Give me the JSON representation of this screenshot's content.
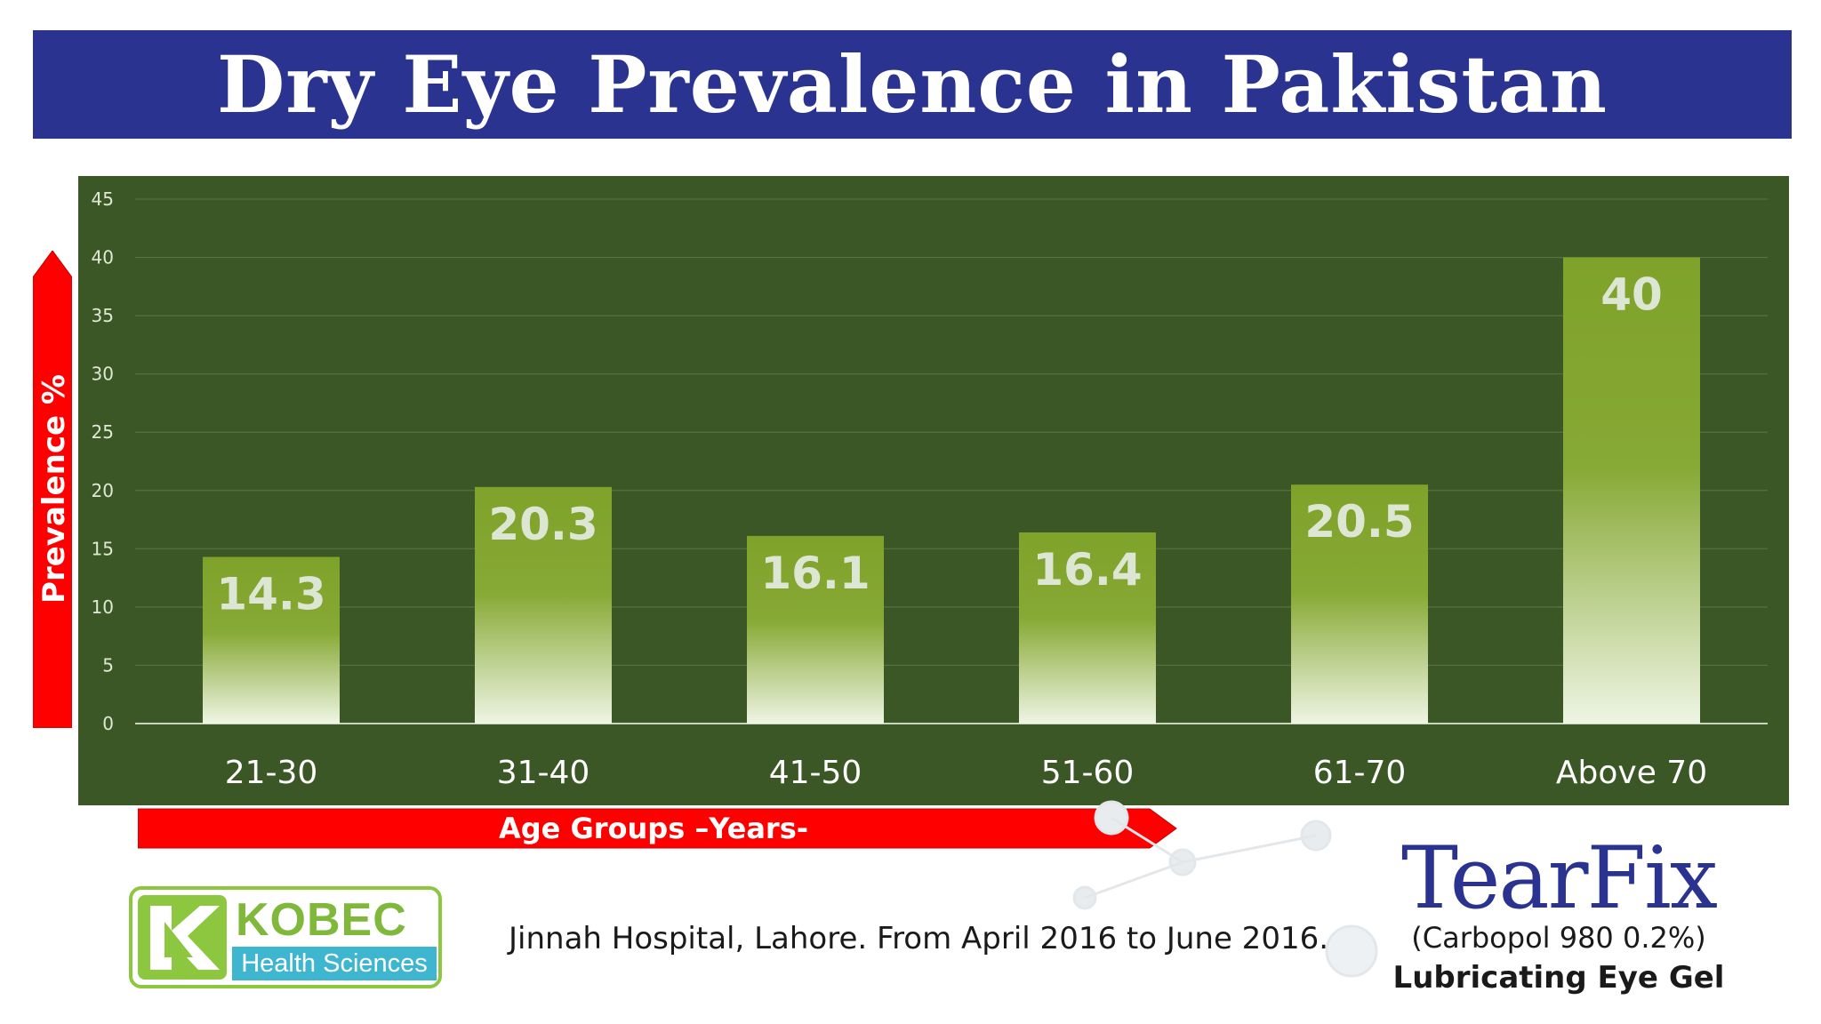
{
  "title": "Dry Eye Prevalence in Pakistan",
  "chart_data": {
    "type": "bar",
    "categories": [
      "21-30",
      "31-40",
      "41-50",
      "51-60",
      "61-70",
      "Above 70"
    ],
    "values": [
      14.3,
      20.3,
      16.1,
      16.4,
      20.5,
      40
    ],
    "data_labels": [
      "14.3",
      "20.3",
      "16.1",
      "16.4",
      "20.5",
      "40"
    ],
    "ylabel": "Prevalence %",
    "xlabel": "Age Groups –Years-",
    "ylim": [
      0,
      45
    ],
    "yticks": [
      0,
      5,
      10,
      15,
      20,
      25,
      30,
      35,
      40,
      45
    ],
    "grid": true
  },
  "colors": {
    "title_banner": "#2a3390",
    "chart_background": "#3c5726",
    "bar_top": "#7fa22a",
    "bar_bottom": "#e6f0dc",
    "axis_arrows": "#ff0000"
  },
  "logo": {
    "name": "KOBEC",
    "subtitle": "Health Sciences"
  },
  "source": "Jinnah Hospital, Lahore. From April 2016 to June 2016.",
  "product": {
    "name": "TearFix",
    "formula": "(Carbopol 980 0.2%)",
    "tagline": "Lubricating Eye Gel"
  }
}
